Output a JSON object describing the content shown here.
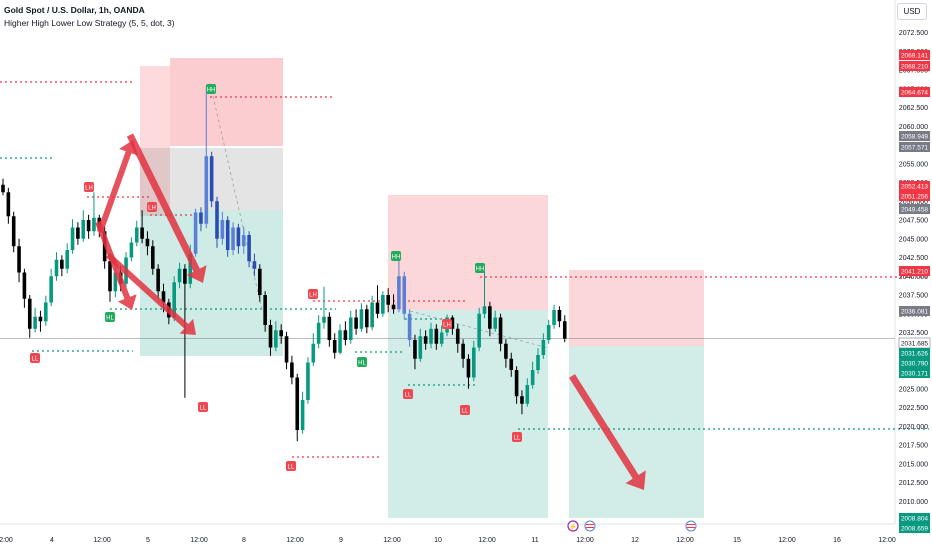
{
  "header": {
    "title": "Gold Spot / U.S. Dollar, 1h, OANDA",
    "indicator": "Higher High Lower Low Strategy (5, 5, dot, 3)",
    "currency": "USD"
  },
  "chart_data": {
    "type": "candlestick",
    "y_ticks": [
      "2072.500",
      "2070.000",
      "2067.500",
      "2065.000",
      "2062.500",
      "2060.000",
      "2057.500",
      "2055.000",
      "2052.500",
      "2050.000",
      "2047.500",
      "2045.000",
      "2042.500",
      "2040.000",
      "2037.500",
      "2035.000",
      "2032.500",
      "2030.000",
      "2027.500",
      "2025.000",
      "2022.500",
      "2020.000",
      "2017.500",
      "2015.000",
      "2012.500",
      "2010.000"
    ],
    "ylim": [
      2008.4,
      2075.5
    ],
    "x_ticks": [
      "2:00",
      "4",
      "12:00",
      "5",
      "12:00",
      "8",
      "12:00",
      "9",
      "12:00",
      "10",
      "12:00",
      "11",
      "12:00",
      "12",
      "12:00",
      "15",
      "12:00",
      "16",
      "12:00"
    ],
    "price_labels": [
      {
        "text": "2069.141",
        "color": "#f23645"
      },
      {
        "text": "2068.210",
        "color": "#f23645"
      },
      {
        "text": "2064.674",
        "color": "#f23645"
      },
      {
        "text": "2058.949",
        "color": "#787b86"
      },
      {
        "text": "2057.571",
        "color": "#787b86"
      },
      {
        "text": "2052.413",
        "color": "#f23645"
      },
      {
        "text": "2051.256",
        "color": "#f23645"
      },
      {
        "text": "2049.458",
        "color": "#787b86"
      },
      {
        "text": "2041.210",
        "color": "#f23645"
      },
      {
        "text": "2036.081",
        "color": "#787b86"
      },
      {
        "text": "2031.685",
        "color": "#ffffff"
      },
      {
        "text": "2031.626",
        "color": "#089981"
      },
      {
        "text": "2030.790",
        "color": "#089981"
      },
      {
        "text": "2030.171",
        "color": "#089981"
      },
      {
        "text": "2008.804",
        "color": "#089981"
      },
      {
        "text": "2008.659",
        "color": "#089981"
      }
    ],
    "pivots": [
      {
        "label": "LH",
        "price": 2051.2,
        "kind": "high"
      },
      {
        "label": "LH",
        "price": 2048.8,
        "kind": "high"
      },
      {
        "label": "HH",
        "price": 2065.3,
        "kind": "high"
      },
      {
        "label": "LL",
        "price": 2031.5,
        "kind": "low"
      },
      {
        "label": "HL",
        "price": 2034.5,
        "kind": "low"
      },
      {
        "label": "LL",
        "price": 2023.8,
        "kind": "low"
      },
      {
        "label": "LL",
        "price": 2018.0,
        "kind": "low"
      },
      {
        "label": "LH",
        "price": 2038.6,
        "kind": "high"
      },
      {
        "label": "HL",
        "price": 2029.6,
        "kind": "low"
      },
      {
        "label": "HH",
        "price": 2042.4,
        "kind": "high"
      },
      {
        "label": "LL",
        "price": 2027.6,
        "kind": "low"
      },
      {
        "label": "LH",
        "price": 2034.9,
        "kind": "high"
      },
      {
        "label": "HH",
        "price": 2041.1,
        "kind": "high"
      },
      {
        "label": "LL",
        "price": 2026.0,
        "kind": "low"
      },
      {
        "label": "LL",
        "price": 2021.6,
        "kind": "low"
      }
    ],
    "candles": [
      [
        2052.2,
        2051.2,
        2053.0,
        2050.8
      ],
      [
        2051.2,
        2048.0,
        2051.8,
        2047.0
      ],
      [
        2048.0,
        2044.0,
        2048.6,
        2043.2
      ],
      [
        2044.0,
        2040.5,
        2045.0,
        2039.2
      ],
      [
        2040.5,
        2037.0,
        2041.0,
        2035.8
      ],
      [
        2037.0,
        2033.0,
        2037.5,
        2031.8
      ],
      [
        2033.0,
        2034.6,
        2035.8,
        2032.5
      ],
      [
        2034.6,
        2034.0,
        2035.4,
        2032.6
      ],
      [
        2034.0,
        2036.5,
        2037.4,
        2033.4
      ],
      [
        2036.5,
        2040.0,
        2041.0,
        2036.0
      ],
      [
        2040.0,
        2042.2,
        2043.2,
        2039.4
      ],
      [
        2042.2,
        2041.0,
        2042.8,
        2040.0
      ],
      [
        2041.0,
        2043.5,
        2044.4,
        2040.4
      ],
      [
        2043.5,
        2046.5,
        2047.6,
        2043.0
      ],
      [
        2046.5,
        2045.0,
        2047.2,
        2044.2
      ],
      [
        2045.0,
        2047.5,
        2048.8,
        2044.6
      ],
      [
        2047.5,
        2046.0,
        2048.2,
        2045.0
      ],
      [
        2046.0,
        2047.8,
        2051.2,
        2045.4
      ],
      [
        2047.8,
        2046.0,
        2048.2,
        2045.2
      ],
      [
        2046.0,
        2042.0,
        2046.6,
        2041.0
      ],
      [
        2042.0,
        2038.0,
        2042.6,
        2036.6
      ],
      [
        2038.0,
        2040.5,
        2041.2,
        2037.2
      ],
      [
        2040.5,
        2039.0,
        2041.4,
        2038.0
      ],
      [
        2039.0,
        2042.5,
        2043.2,
        2038.6
      ],
      [
        2042.5,
        2044.5,
        2045.2,
        2042.0
      ],
      [
        2044.5,
        2046.5,
        2047.4,
        2044.0
      ],
      [
        2046.5,
        2045.0,
        2048.8,
        2044.4
      ],
      [
        2045.0,
        2044.0,
        2046.0,
        2042.8
      ],
      [
        2044.0,
        2041.0,
        2044.8,
        2040.2
      ],
      [
        2041.0,
        2038.0,
        2041.6,
        2037.0
      ],
      [
        2038.0,
        2036.5,
        2039.0,
        2035.2
      ],
      [
        2036.5,
        2034.5,
        2037.0,
        2033.6
      ],
      [
        2034.5,
        2039.2,
        2040.0,
        2034.0
      ],
      [
        2039.2,
        2041.0,
        2041.8,
        2038.4
      ],
      [
        2041.0,
        2039.0,
        2041.6,
        2023.8
      ],
      [
        2039.0,
        2043.0,
        2044.2,
        2038.4
      ],
      [
        2043.0,
        2048.5,
        2049.0,
        2042.6
      ],
      [
        2048.5,
        2047.0,
        2049.2,
        2046.0
      ],
      [
        2047.0,
        2056.0,
        2065.3,
        2046.4
      ],
      [
        2056.0,
        2050.0,
        2056.6,
        2049.2
      ],
      [
        2050.0,
        2045.0,
        2050.6,
        2043.8
      ],
      [
        2045.0,
        2047.5,
        2048.6,
        2044.2
      ],
      [
        2047.5,
        2043.5,
        2048.0,
        2042.6
      ],
      [
        2043.5,
        2046.5,
        2047.2,
        2042.8
      ],
      [
        2046.5,
        2044.0,
        2047.0,
        2043.0
      ],
      [
        2044.0,
        2045.5,
        2046.6,
        2043.0
      ],
      [
        2045.5,
        2042.0,
        2046.0,
        2041.2
      ],
      [
        2042.0,
        2041.0,
        2043.0,
        2040.0
      ],
      [
        2041.0,
        2037.5,
        2041.6,
        2036.6
      ],
      [
        2037.5,
        2033.5,
        2038.0,
        2032.6
      ],
      [
        2033.5,
        2030.5,
        2034.2,
        2029.4
      ],
      [
        2030.5,
        2032.8,
        2034.0,
        2030.0
      ],
      [
        2032.8,
        2032.0,
        2033.6,
        2031.0
      ],
      [
        2032.0,
        2028.5,
        2032.6,
        2027.6
      ],
      [
        2028.5,
        2026.5,
        2029.4,
        2025.6
      ],
      [
        2026.5,
        2019.5,
        2027.0,
        2018.0
      ],
      [
        2019.5,
        2023.5,
        2024.6,
        2019.0
      ],
      [
        2023.5,
        2028.5,
        2029.2,
        2023.0
      ],
      [
        2028.5,
        2031.0,
        2032.4,
        2028.0
      ],
      [
        2031.0,
        2033.8,
        2034.8,
        2030.4
      ],
      [
        2033.8,
        2034.6,
        2038.6,
        2033.0
      ],
      [
        2034.6,
        2031.5,
        2035.2,
        2030.6
      ],
      [
        2031.5,
        2029.8,
        2032.4,
        2029.0
      ],
      [
        2029.8,
        2032.8,
        2033.6,
        2029.6
      ],
      [
        2032.8,
        2031.5,
        2034.0,
        2030.8
      ],
      [
        2031.5,
        2034.5,
        2035.4,
        2031.0
      ],
      [
        2034.5,
        2033.0,
        2035.6,
        2032.2
      ],
      [
        2033.0,
        2035.6,
        2036.4,
        2032.6
      ],
      [
        2035.6,
        2033.2,
        2036.2,
        2032.4
      ],
      [
        2033.2,
        2036.5,
        2037.4,
        2032.8
      ],
      [
        2036.5,
        2035.0,
        2038.8,
        2034.4
      ],
      [
        2035.0,
        2037.5,
        2038.0,
        2034.6
      ],
      [
        2037.5,
        2036.2,
        2038.4,
        2035.2
      ],
      [
        2036.2,
        2035.6,
        2037.6,
        2035.0
      ],
      [
        2035.6,
        2040.0,
        2042.4,
        2035.2
      ],
      [
        2040.0,
        2035.0,
        2040.6,
        2034.2
      ],
      [
        2035.0,
        2031.5,
        2035.6,
        2030.6
      ],
      [
        2031.5,
        2029.0,
        2032.2,
        2027.6
      ],
      [
        2029.0,
        2032.0,
        2033.0,
        2028.6
      ],
      [
        2032.0,
        2031.0,
        2032.8,
        2030.2
      ],
      [
        2031.0,
        2033.0,
        2033.8,
        2030.4
      ],
      [
        2033.0,
        2031.0,
        2033.6,
        2030.2
      ],
      [
        2031.0,
        2032.5,
        2033.4,
        2030.6
      ],
      [
        2032.5,
        2034.5,
        2034.9,
        2032.0
      ],
      [
        2034.5,
        2033.0,
        2034.8,
        2032.2
      ],
      [
        2033.0,
        2031.0,
        2033.6,
        2029.8
      ],
      [
        2031.0,
        2029.0,
        2031.6,
        2027.8
      ],
      [
        2029.0,
        2026.5,
        2029.6,
        2025.0
      ],
      [
        2026.5,
        2030.5,
        2031.4,
        2026.0
      ],
      [
        2030.5,
        2035.0,
        2035.8,
        2030.0
      ],
      [
        2035.0,
        2036.0,
        2041.1,
        2034.4
      ],
      [
        2036.0,
        2033.0,
        2036.6,
        2032.0
      ],
      [
        2033.0,
        2034.5,
        2035.4,
        2032.6
      ],
      [
        2034.5,
        2031.0,
        2035.0,
        2030.0
      ],
      [
        2031.0,
        2029.0,
        2031.6,
        2027.8
      ],
      [
        2029.0,
        2027.5,
        2029.8,
        2026.6
      ],
      [
        2027.5,
        2024.0,
        2028.0,
        2023.0
      ],
      [
        2024.0,
        2023.0,
        2024.8,
        2021.6
      ],
      [
        2023.0,
        2025.5,
        2026.4,
        2022.6
      ],
      [
        2025.5,
        2027.5,
        2028.6,
        2025.0
      ],
      [
        2027.5,
        2029.5,
        2030.4,
        2027.0
      ],
      [
        2029.5,
        2031.5,
        2032.4,
        2029.0
      ],
      [
        2031.5,
        2033.5,
        2034.2,
        2031.0
      ],
      [
        2033.5,
        2035.5,
        2036.2,
        2033.0
      ],
      [
        2035.5,
        2034.0,
        2036.0,
        2033.2
      ],
      [
        2034.0,
        2031.7,
        2034.8,
        2031.2
      ]
    ]
  }
}
